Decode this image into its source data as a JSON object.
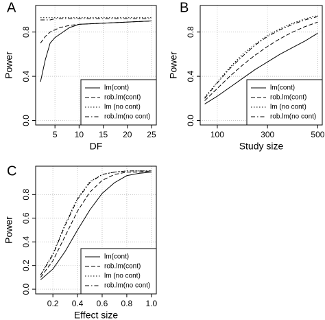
{
  "chart_data": [
    {
      "type": "line",
      "label": "A",
      "xlabel": "DF",
      "ylabel": "Power",
      "x": [
        2,
        3,
        4,
        5,
        6,
        8,
        10,
        15,
        20,
        25
      ],
      "xlim": [
        1,
        26
      ],
      "xticks": [
        5,
        10,
        15,
        20,
        25
      ],
      "ylim": [
        -0.04,
        1.04
      ],
      "yticks": [
        {
          "value": 0,
          "label": "0.0"
        },
        {
          "value": 0.4,
          "label": "0.4"
        },
        {
          "value": 0.8,
          "label": "0.8"
        }
      ],
      "grid": true,
      "legend": "bottomright",
      "series": [
        {
          "name": "lm(cont)",
          "color": "#000000",
          "linestyle": "solid",
          "values": [
            0.35,
            0.55,
            0.7,
            0.75,
            0.78,
            0.84,
            0.87,
            0.88,
            0.89,
            0.9
          ]
        },
        {
          "name": "rob.lm(cont)",
          "color": "#000000",
          "linestyle": "dashed",
          "values": [
            0.7,
            0.76,
            0.8,
            0.82,
            0.84,
            0.86,
            0.87,
            0.88,
            0.89,
            0.9
          ]
        },
        {
          "name": "lm (no cont)",
          "color": "#000000",
          "linestyle": "dotted",
          "values": [
            0.93,
            0.93,
            0.93,
            0.93,
            0.93,
            0.93,
            0.93,
            0.93,
            0.93,
            0.93
          ]
        },
        {
          "name": "rob.lm(no cont)",
          "color": "#000000",
          "linestyle": "dashdot",
          "values": [
            0.91,
            0.91,
            0.91,
            0.92,
            0.92,
            0.92,
            0.92,
            0.92,
            0.92,
            0.92
          ]
        }
      ]
    },
    {
      "type": "line",
      "label": "B",
      "xlabel": "Study size",
      "ylabel": "Power",
      "x": [
        50,
        100,
        150,
        200,
        250,
        300,
        350,
        400,
        450,
        500
      ],
      "xlim": [
        32,
        518
      ],
      "xticks": [
        100,
        300,
        500
      ],
      "ylim": [
        -0.04,
        1.04
      ],
      "yticks": [
        {
          "value": 0,
          "label": "0.0"
        },
        {
          "value": 0.4,
          "label": "0.4"
        },
        {
          "value": 0.8,
          "label": "0.8"
        }
      ],
      "grid": true,
      "legend": "bottomright",
      "series": [
        {
          "name": "lm(cont)",
          "color": "#000000",
          "linestyle": "solid",
          "values": [
            0.15,
            0.22,
            0.3,
            0.38,
            0.46,
            0.53,
            0.6,
            0.66,
            0.72,
            0.79
          ]
        },
        {
          "name": "rob.lm(cont)",
          "color": "#000000",
          "linestyle": "dashed",
          "values": [
            0.18,
            0.29,
            0.4,
            0.5,
            0.59,
            0.67,
            0.74,
            0.8,
            0.85,
            0.89
          ]
        },
        {
          "name": "lm (no cont)",
          "color": "#000000",
          "linestyle": "dotted",
          "values": [
            0.21,
            0.35,
            0.48,
            0.6,
            0.69,
            0.77,
            0.83,
            0.88,
            0.92,
            0.95
          ]
        },
        {
          "name": "rob.lm(no cont)",
          "color": "#000000",
          "linestyle": "dashdot",
          "values": [
            0.2,
            0.34,
            0.47,
            0.58,
            0.68,
            0.76,
            0.82,
            0.87,
            0.91,
            0.94
          ]
        }
      ]
    },
    {
      "type": "line",
      "label": "C",
      "xlabel": "Effect size",
      "ylabel": "Power",
      "x": [
        0.1,
        0.2,
        0.3,
        0.4,
        0.5,
        0.6,
        0.7,
        0.8,
        0.9,
        1
      ],
      "xlim": [
        0.06,
        1.04
      ],
      "xticks": [
        0.2,
        0.4,
        0.6,
        0.8,
        {
          "value": 1,
          "label": "1.0"
        }
      ],
      "ylim": [
        -0.04,
        1.04
      ],
      "yticks": [
        {
          "value": 0,
          "label": "0.0"
        },
        0.2,
        0.4,
        0.6,
        0.8
      ],
      "grid": true,
      "legend": "bottomright",
      "series": [
        {
          "name": "lm(cont)",
          "color": "#000000",
          "linestyle": "solid",
          "values": [
            0.08,
            0.17,
            0.32,
            0.5,
            0.67,
            0.81,
            0.9,
            0.96,
            0.98,
            0.99
          ]
        },
        {
          "name": "rob.lm(cont)",
          "color": "#000000",
          "linestyle": "dashed",
          "values": [
            0.1,
            0.24,
            0.45,
            0.66,
            0.82,
            0.92,
            0.97,
            0.99,
            0.99,
            1
          ]
        },
        {
          "name": "lm (no cont)",
          "color": "#000000",
          "linestyle": "dotted",
          "values": [
            0.12,
            0.3,
            0.55,
            0.77,
            0.91,
            0.97,
            0.99,
            1,
            1,
            1
          ]
        },
        {
          "name": "rob.lm(no cont)",
          "color": "#000000",
          "linestyle": "dashdot",
          "values": [
            0.12,
            0.29,
            0.54,
            0.76,
            0.9,
            0.97,
            0.99,
            1,
            1,
            1
          ]
        }
      ]
    }
  ]
}
